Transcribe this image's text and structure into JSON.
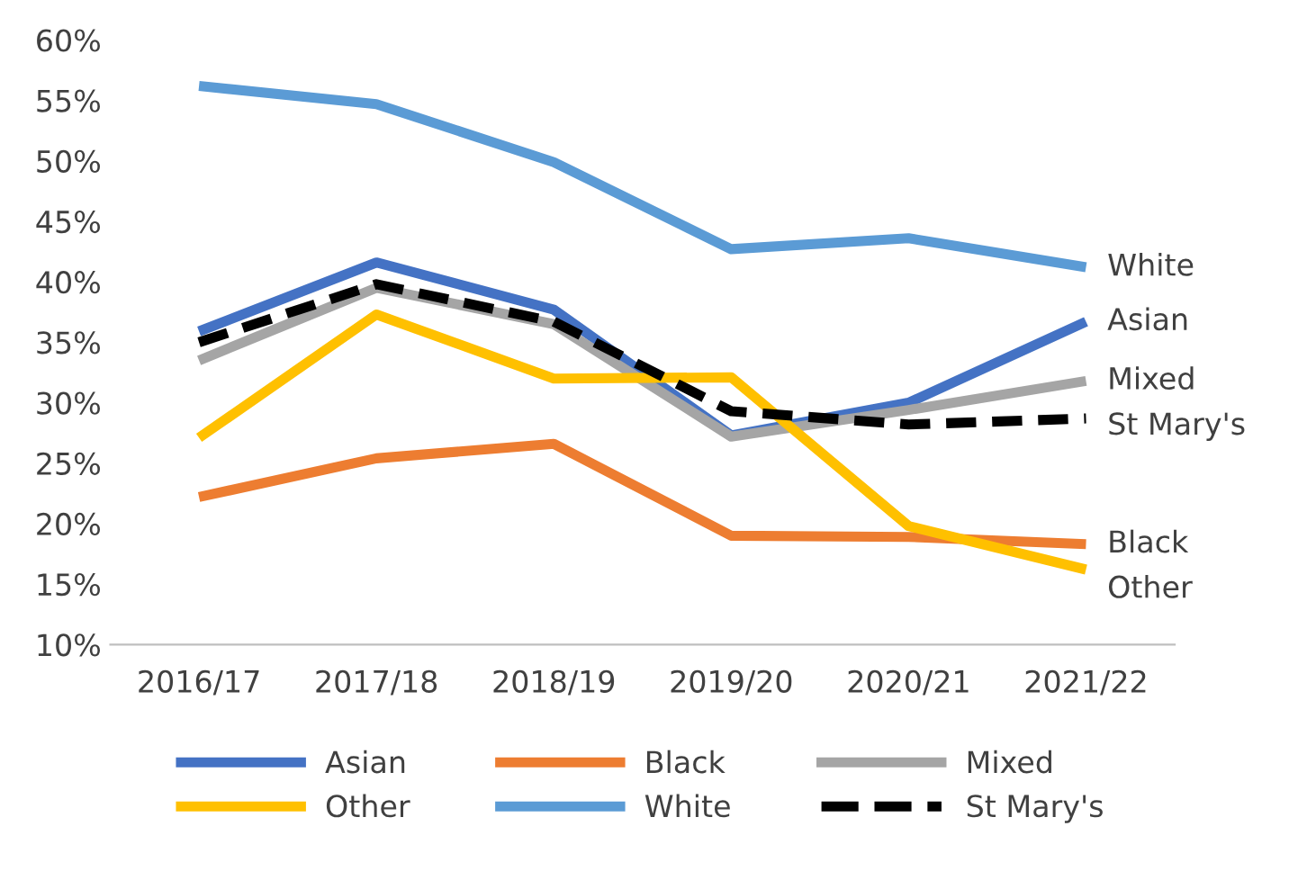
{
  "chart_data": {
    "type": "line",
    "categories": [
      "2016/17",
      "2017/18",
      "2018/19",
      "2019/20",
      "2020/21",
      "2021/22"
    ],
    "series": [
      {
        "name": "Asian",
        "color": "#4472c4",
        "values": [
          35.9,
          41.6,
          37.7,
          27.3,
          30.0,
          36.7
        ]
      },
      {
        "name": "Black",
        "color": "#ed7d31",
        "values": [
          22.2,
          25.4,
          26.6,
          19.0,
          18.9,
          18.3
        ]
      },
      {
        "name": "Mixed",
        "color": "#a5a5a5",
        "values": [
          33.5,
          39.5,
          36.5,
          27.2,
          29.4,
          31.8
        ]
      },
      {
        "name": "Other",
        "color": "#ffc000",
        "values": [
          27.1,
          37.3,
          32.0,
          32.1,
          19.8,
          16.2
        ]
      },
      {
        "name": "White",
        "color": "#5b9bd5",
        "values": [
          56.2,
          54.7,
          49.9,
          42.7,
          43.6,
          41.2
        ]
      },
      {
        "name": "St Mary's",
        "color": "#000000",
        "line_style": "dashed",
        "values": [
          35.0,
          39.8,
          36.7,
          29.3,
          28.2,
          28.7
        ]
      }
    ],
    "ylim": [
      10,
      60
    ],
    "yticks": [
      {
        "value": 10,
        "label": "10%"
      },
      {
        "value": 15,
        "label": "15%"
      },
      {
        "value": 20,
        "label": "20%"
      },
      {
        "value": 25,
        "label": "25%"
      },
      {
        "value": 30,
        "label": "30%"
      },
      {
        "value": 35,
        "label": "35%"
      },
      {
        "value": 40,
        "label": "40%"
      },
      {
        "value": 45,
        "label": "45%"
      },
      {
        "value": 50,
        "label": "50%"
      },
      {
        "value": 55,
        "label": "55%"
      },
      {
        "value": 60,
        "label": "60%"
      }
    ],
    "grid": false,
    "legend": "bottom"
  }
}
